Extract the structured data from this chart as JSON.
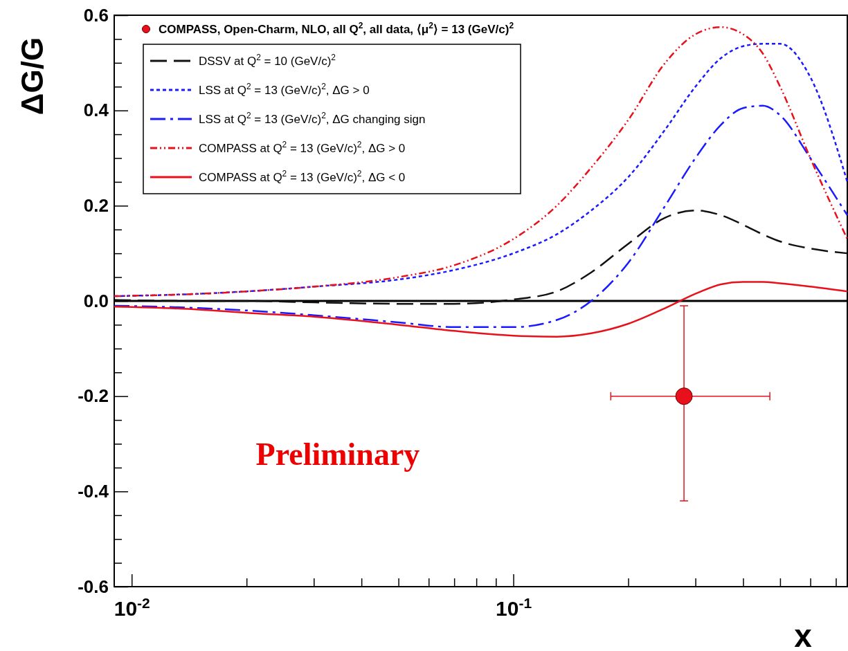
{
  "chart_data": {
    "type": "line",
    "xlabel": "x",
    "ylabel": "ΔG/G",
    "log": "x",
    "xlim": [
      0.009,
      0.75
    ],
    "ylim": [
      -0.6,
      0.6
    ],
    "xticks": [
      {
        "value": 0.01,
        "label": "10$^{-2}$"
      },
      {
        "value": 0.02,
        "label": null
      },
      {
        "value": 0.03,
        "label": null
      },
      {
        "value": 0.04,
        "label": null
      },
      {
        "value": 0.05,
        "label": null
      },
      {
        "value": 0.06,
        "label": null
      },
      {
        "value": 0.07,
        "label": null
      },
      {
        "value": 0.08,
        "label": null
      },
      {
        "value": 0.09,
        "label": null
      },
      {
        "value": 0.1,
        "label": "10$^{-1}$"
      },
      {
        "value": 0.2,
        "label": null
      },
      {
        "value": 0.3,
        "label": null
      },
      {
        "value": 0.4,
        "label": null
      },
      {
        "value": 0.5,
        "label": null
      },
      {
        "value": 0.6,
        "label": null
      },
      {
        "value": 0.7,
        "label": null
      }
    ],
    "yticks": [
      {
        "value": -0.6,
        "label": "-0.6"
      },
      {
        "value": -0.55,
        "label": null
      },
      {
        "value": -0.5,
        "label": null
      },
      {
        "value": -0.45,
        "label": null
      },
      {
        "value": -0.4,
        "label": "-0.4"
      },
      {
        "value": -0.35,
        "label": null
      },
      {
        "value": -0.3,
        "label": null
      },
      {
        "value": -0.25,
        "label": null
      },
      {
        "value": -0.2,
        "label": "-0.2"
      },
      {
        "value": -0.15,
        "label": null
      },
      {
        "value": -0.1,
        "label": null
      },
      {
        "value": -0.05,
        "label": null
      },
      {
        "value": 0,
        "label": "0.0"
      },
      {
        "value": 0.05,
        "label": null
      },
      {
        "value": 0.1,
        "label": null
      },
      {
        "value": 0.15,
        "label": null
      },
      {
        "value": 0.2,
        "label": "0.2"
      },
      {
        "value": 0.25,
        "label": null
      },
      {
        "value": 0.3,
        "label": null
      },
      {
        "value": 0.35,
        "label": null
      },
      {
        "value": 0.4,
        "label": "0.4"
      },
      {
        "value": 0.45,
        "label": null
      },
      {
        "value": 0.5,
        "label": null
      },
      {
        "value": 0.55,
        "label": null
      },
      {
        "value": 0.6,
        "label": "0.6"
      }
    ],
    "legend": "top left",
    "grid": false,
    "x": [
      0.009,
      0.015,
      0.02,
      0.03,
      0.05,
      0.07,
      0.1,
      0.13,
      0.16,
      0.2,
      0.25,
      0.3,
      0.35,
      0.4,
      0.45,
      0.5,
      0.6,
      0.75
    ],
    "series": [
      {
        "type": "scatter",
        "name": "COMPASS, Open-Charm, NLO, all Q$^{2}$, all data, ⟨μ$^{2}$⟩ = 13 (GeV/c)$^{2}$",
        "color": "#e8101a",
        "marker": "circle",
        "x": [
          0.28
        ],
        "values": [
          -0.2
        ],
        "errors": [
          [
            -0.42,
            -0.01
          ]
        ],
        "xerrors": [
          [
            0.18,
            0.47
          ]
        ]
      },
      {
        "name": "DSSV at Q$^{2}$ = 10 (GeV/c)$^{2}$",
        "color": "#111111",
        "line_style": "dashed",
        "values": [
          0.002,
          0,
          0,
          -0.003,
          -0.006,
          -0.006,
          0.003,
          0.02,
          0.06,
          0.12,
          0.175,
          0.19,
          0.18,
          0.16,
          0.14,
          0.125,
          0.11,
          0.1
        ]
      },
      {
        "name": "LSS at Q$^{2}$ = 13 (GeV/c)$^{2}$, ΔG > 0",
        "color": "#1a1aff",
        "line_style": "dotted",
        "values": [
          0.01,
          0.015,
          0.02,
          0.03,
          0.045,
          0.065,
          0.1,
          0.14,
          0.19,
          0.26,
          0.36,
          0.45,
          0.51,
          0.535,
          0.54,
          0.54,
          0.47,
          0.25
        ]
      },
      {
        "name": "LSS at Q$^{2}$ = 13 (GeV/c)$^{2}$, ΔG changing sign",
        "color": "#1a1aff",
        "line_style": "dashdot",
        "values": [
          -0.01,
          -0.015,
          -0.02,
          -0.03,
          -0.045,
          -0.055,
          -0.055,
          -0.04,
          0,
          0.08,
          0.2,
          0.3,
          0.37,
          0.405,
          0.41,
          0.39,
          0.3,
          0.18
        ]
      },
      {
        "name": "COMPASS at Q$^{2}$ = 13 (GeV/c)$^{2}$, ΔG > 0",
        "color": "#e8101a",
        "line_style": "dashdotdot",
        "values": [
          0.01,
          0.015,
          0.02,
          0.03,
          0.05,
          0.075,
          0.13,
          0.2,
          0.28,
          0.38,
          0.5,
          0.56,
          0.575,
          0.56,
          0.52,
          0.45,
          0.3,
          0.13
        ]
      },
      {
        "name": "COMPASS at Q$^{2}$ = 13 (GeV/c)$^{2}$, ΔG < 0",
        "color": "#e8101a",
        "line_style": "solid",
        "values": [
          -0.012,
          -0.018,
          -0.025,
          -0.033,
          -0.05,
          -0.063,
          -0.073,
          -0.075,
          -0.068,
          -0.048,
          -0.015,
          0.015,
          0.035,
          0.04,
          0.04,
          0.037,
          0.03,
          0.02
        ]
      }
    ],
    "ref_lines": [
      {
        "axis": "y",
        "value": 0,
        "color": "#000000",
        "line_style": "solid"
      }
    ],
    "annotations": [
      "Preliminary"
    ]
  }
}
